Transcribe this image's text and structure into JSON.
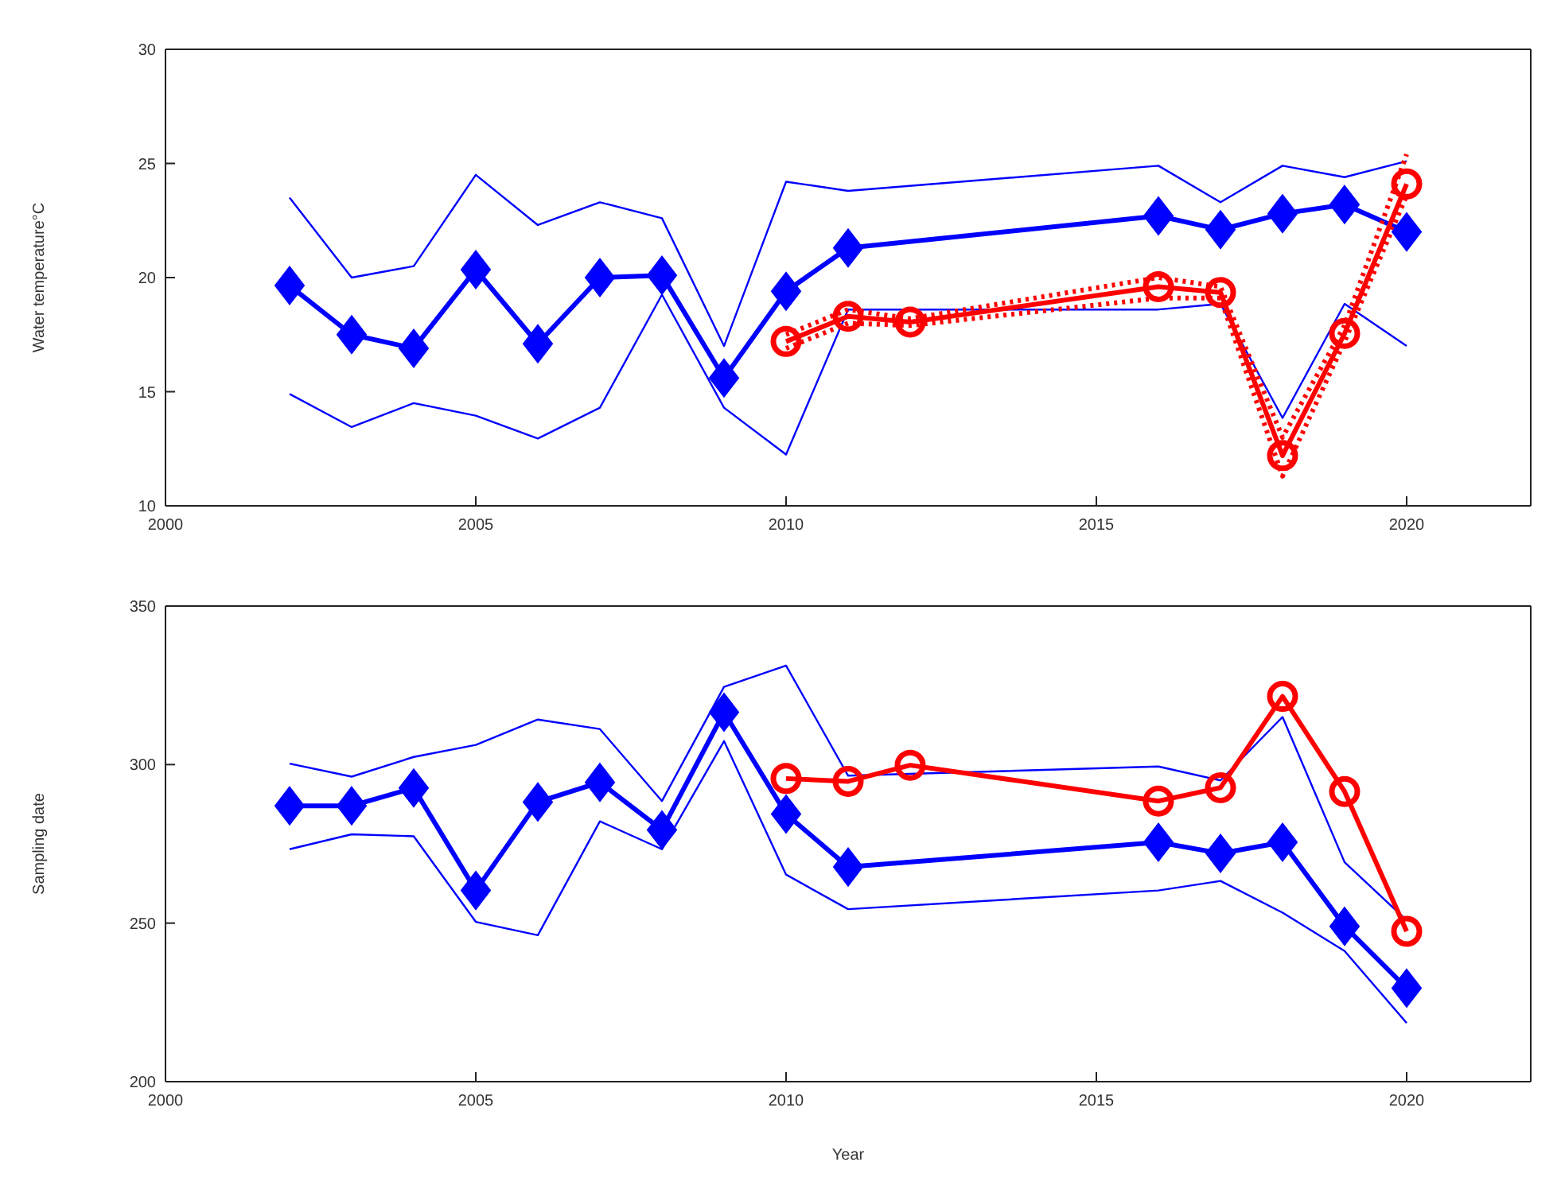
{
  "chart_data": [
    {
      "type": "line",
      "ylabel": "Water temperature°C",
      "xlim": [
        2000,
        2022
      ],
      "xticks": [
        2000,
        2005,
        2010,
        2015,
        2020
      ],
      "ylim": [
        10,
        30
      ],
      "yticks": [
        10,
        15,
        20,
        25,
        30
      ],
      "series": [
        {
          "color": "#0000ff",
          "marker": "none",
          "line_style": "solid",
          "x": [
            2002,
            2003,
            2004,
            2005,
            2006,
            2007,
            2008,
            2009,
            2010,
            2011,
            2016,
            2017,
            2018,
            2019,
            2020
          ],
          "values": [
            23.5,
            20.0,
            20.5,
            24.5,
            22.3,
            23.3,
            22.6,
            17.0,
            24.2,
            23.8,
            24.9,
            23.3,
            24.9,
            24.4,
            25.1
          ]
        },
        {
          "color": "#0000ff",
          "marker": "none",
          "line_style": "solid",
          "x": [
            2002,
            2003,
            2004,
            2005,
            2006,
            2007,
            2008,
            2009,
            2010,
            2011,
            2016,
            2017,
            2018,
            2019,
            2020
          ],
          "values": [
            14.9,
            13.45,
            14.5,
            13.95,
            12.95,
            14.3,
            19.25,
            14.3,
            12.25,
            18.6,
            18.6,
            18.85,
            13.85,
            18.85,
            17.0
          ]
        },
        {
          "color": "#0000ff",
          "marker": "diamond",
          "line_style": "solid",
          "x": [
            2002,
            2003,
            2004,
            2005,
            2006,
            2007,
            2008,
            2009,
            2010,
            2011,
            2016,
            2017,
            2018,
            2019,
            2020
          ],
          "values": [
            19.65,
            17.5,
            16.9,
            20.35,
            17.1,
            20.0,
            20.1,
            15.6,
            19.4,
            21.3,
            22.7,
            22.1,
            22.8,
            23.2,
            22.0
          ]
        },
        {
          "color": "#ff0000",
          "marker": "none",
          "line_style": "dotted",
          "x": [
            2010,
            2011,
            2012,
            2016,
            2017,
            2018,
            2019,
            2020
          ],
          "values": [
            17.5,
            18.6,
            18.2,
            20.0,
            19.6,
            13.0,
            17.9,
            25.4
          ]
        },
        {
          "color": "#ff0000",
          "marker": "none",
          "line_style": "dotted",
          "x": [
            2010,
            2011,
            2012,
            2016,
            2017,
            2018,
            2019,
            2020
          ],
          "values": [
            16.9,
            18.0,
            17.9,
            19.1,
            19.1,
            11.3,
            17.2,
            23.6
          ]
        },
        {
          "color": "#ff0000",
          "marker": "circle",
          "line_style": "solid",
          "x": [
            2010,
            2011,
            2012,
            2016,
            2017,
            2018,
            2019,
            2020
          ],
          "values": [
            17.2,
            18.3,
            18.05,
            19.6,
            19.35,
            12.2,
            17.55,
            24.1
          ]
        }
      ]
    },
    {
      "type": "line",
      "xlabel": "Year",
      "ylabel": "Sampling date",
      "xlim": [
        2000,
        2022
      ],
      "xticks": [
        2000,
        2005,
        2010,
        2015,
        2020
      ],
      "ylim": [
        200,
        350
      ],
      "yticks": [
        200,
        250,
        300,
        350
      ],
      "series": [
        {
          "color": "#0000ff",
          "marker": "none",
          "line_style": "solid",
          "x": [
            2002,
            2003,
            2004,
            2005,
            2006,
            2007,
            2008,
            2009,
            2010,
            2011,
            2016,
            2017,
            2018,
            2019,
            2020
          ],
          "values": [
            300.3,
            296.2,
            302.4,
            306.2,
            314.2,
            311.2,
            288.5,
            324.5,
            331.2,
            296.5,
            299.4,
            295,
            315,
            269.2,
            250.9
          ]
        },
        {
          "color": "#0000ff",
          "marker": "none",
          "line_style": "solid",
          "x": [
            2002,
            2003,
            2004,
            2005,
            2006,
            2007,
            2008,
            2009,
            2010,
            2011,
            2016,
            2017,
            2018,
            2019,
            2020
          ],
          "values": [
            273.3,
            278,
            277.4,
            250.4,
            246.2,
            282.1,
            273.3,
            307.4,
            265.3,
            254.4,
            260.3,
            263.3,
            253.3,
            241.2,
            218.5
          ]
        },
        {
          "color": "#0000ff",
          "marker": "diamond",
          "line_style": "solid",
          "x": [
            2002,
            2003,
            2004,
            2005,
            2006,
            2007,
            2008,
            2009,
            2010,
            2011,
            2016,
            2017,
            2018,
            2019,
            2020
          ],
          "values": [
            287,
            287,
            292.6,
            260.3,
            288.2,
            294.4,
            279.4,
            316.5,
            284.4,
            267.7,
            275.5,
            272,
            275.5,
            249,
            229.5
          ]
        },
        {
          "color": "#ff0000",
          "marker": "circle",
          "line_style": "solid",
          "x": [
            2010,
            2011,
            2012,
            2016,
            2017,
            2018,
            2019,
            2020
          ],
          "values": [
            295.6,
            294.7,
            299.8,
            288.5,
            292.7,
            321.5,
            291.5,
            247.4
          ]
        }
      ]
    }
  ]
}
